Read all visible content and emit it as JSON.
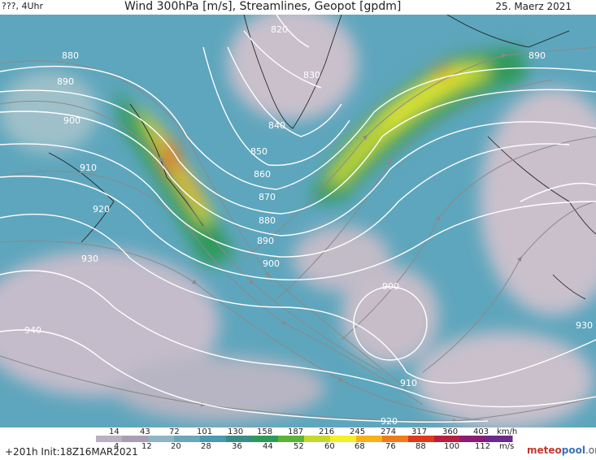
{
  "header": {
    "left_label": "???, 4Uhr",
    "title": "Wind 300hPa [m/s], Streamlines, Geopot [gpdm]",
    "date": "25. Maerz 2021"
  },
  "footer": {
    "init": "+201h  Init:18Z16MAR2021",
    "brand_a": "meteo",
    "brand_b": "pool",
    "brand_c": ".org"
  },
  "legend": {
    "kmh_unit": "km/h",
    "ms_unit": "m/s",
    "kmh_labels": [
      "14",
      "43",
      "72",
      "101",
      "130",
      "158",
      "187",
      "216",
      "245",
      "274",
      "317",
      "360",
      "403"
    ],
    "ms_labels": [
      "4",
      "12",
      "20",
      "28",
      "36",
      "44",
      "52",
      "60",
      "68",
      "76",
      "88",
      "100",
      "112"
    ],
    "colors": [
      "#b9b1bf",
      "#a99fb3",
      "#8fb5c4",
      "#6aa7bb",
      "#4a9ab0",
      "#3b8c86",
      "#2e9a5a",
      "#5db337",
      "#c3d92e",
      "#f3ef2a",
      "#f6b21b",
      "#f07b19",
      "#de3a1a",
      "#b71f3c",
      "#8a1d73",
      "#6c2a8c"
    ]
  },
  "contours": {
    "labels": [
      "820",
      "830",
      "840",
      "850",
      "860",
      "870",
      "880",
      "890",
      "900",
      "910",
      "920",
      "930",
      "940",
      "880",
      "890",
      "900",
      "910",
      "920",
      "930",
      "890",
      "900"
    ]
  }
}
